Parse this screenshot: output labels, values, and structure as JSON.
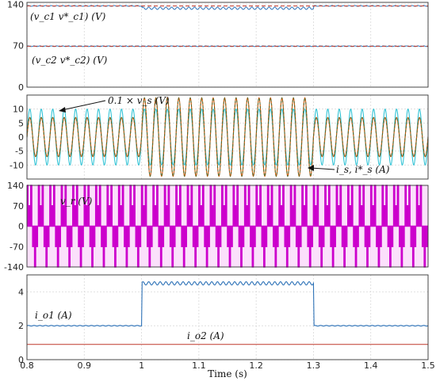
{
  "chart_data": [
    {
      "type": "line",
      "xlim": [
        0.8,
        1.5
      ],
      "ylim": [
        0,
        140
      ],
      "yticks": [
        "0",
        "70",
        "140"
      ],
      "grid": true,
      "annotations": [
        "(v_c1 v*_c1) (V)",
        "(v_c2 v*_c2) (V)"
      ],
      "series": [
        {
          "name": "v_c1",
          "color": "#2f73b8",
          "segments": [
            [
              0.8,
              1.0,
              137
            ],
            [
              1.0,
              1.3,
              133
            ],
            [
              1.3,
              1.5,
              137
            ]
          ]
        },
        {
          "name": "v*_c1",
          "color": "#c0392b",
          "segments": [
            [
              0.8,
              1.5,
              137
            ]
          ]
        },
        {
          "name": "v_c2",
          "color": "#2f73b8",
          "segments": [
            [
              0.8,
              1.5,
              69
            ]
          ]
        },
        {
          "name": "v*_c2",
          "color": "#c0392b",
          "segments": [
            [
              0.8,
              1.5,
              69
            ]
          ]
        }
      ]
    },
    {
      "type": "line",
      "xlim": [
        0.8,
        1.5
      ],
      "ylim": [
        -15,
        15
      ],
      "yticks": [
        "10",
        "5",
        "0",
        "-5",
        "-10"
      ],
      "grid": true,
      "annotations": [
        "0.1 × v_s (V)",
        "i_s, i*_s (A)"
      ],
      "frequency_hz": 50,
      "series": [
        {
          "name": "0.1 × v_s",
          "color": "#33c4d6",
          "amplitude": 10
        },
        {
          "name": "i_s",
          "color": "#d35400",
          "amplitude": [
            [
              0.8,
              1.0,
              7
            ],
            [
              1.0,
              1.3,
              14
            ],
            [
              1.3,
              1.5,
              7
            ]
          ]
        },
        {
          "name": "i*_s",
          "color": "#556b2f",
          "amplitude": [
            [
              0.8,
              1.0,
              7
            ],
            [
              1.0,
              1.3,
              14
            ],
            [
              1.3,
              1.5,
              7
            ]
          ]
        }
      ]
    },
    {
      "type": "line",
      "xlim": [
        0.8,
        1.5
      ],
      "ylim": [
        -140,
        140
      ],
      "yticks": [
        "140",
        "70",
        "0",
        "-70",
        "-140"
      ],
      "grid": true,
      "annotations": [
        "v_r (V)"
      ],
      "series": [
        {
          "name": "v_r",
          "color": "#cc00cc",
          "levels": [
            140,
            70,
            0,
            -70,
            -140
          ],
          "frequency_hz": 50
        }
      ]
    },
    {
      "type": "line",
      "xlim": [
        0.8,
        1.5
      ],
      "ylim": [
        0,
        5
      ],
      "yticks": [
        "4",
        "2",
        "0"
      ],
      "xticks": [
        "0.8",
        "0.9",
        "1",
        "1.1",
        "1.2",
        "1.3",
        "1.4",
        "1.5"
      ],
      "xlabel": "Time (s)",
      "grid": true,
      "annotations": [
        "i_o1 (A)",
        "i_o2 (A)"
      ],
      "series": [
        {
          "name": "i_o1",
          "color": "#2f73b8",
          "segments": [
            [
              0.8,
              1.0,
              2.0
            ],
            [
              1.0,
              1.3,
              4.5
            ],
            [
              1.3,
              1.5,
              2.0
            ]
          ]
        },
        {
          "name": "i_o2",
          "color": "#c0392b",
          "segments": [
            [
              0.8,
              1.5,
              0.9
            ]
          ]
        }
      ]
    }
  ]
}
